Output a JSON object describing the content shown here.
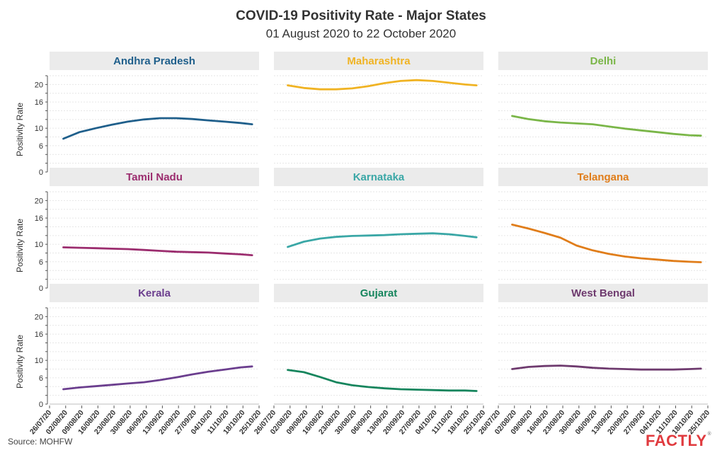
{
  "title": "COVID-19 Positivity Rate - Major States",
  "subtitle": "01 August 2020 to 22 October 2020",
  "source": "Source: MOHFW",
  "logo": "FACTLY",
  "chart_data": {
    "type": "line",
    "layout": "small-multiples 3x3",
    "ylabel": "Positivity Rate",
    "yticks": [
      0,
      6,
      10,
      16,
      20
    ],
    "ylim": [
      0,
      22
    ],
    "grid": true,
    "x_dates": [
      "01/08/20",
      "08/08/20",
      "15/08/20",
      "22/08/20",
      "29/08/20",
      "05/09/20",
      "12/09/20",
      "19/09/20",
      "26/09/20",
      "03/10/20",
      "10/10/20",
      "17/10/20",
      "22/10/20"
    ],
    "x_range": [
      "26/07/20",
      "25/10/20"
    ],
    "xtick_labels": [
      "26/07/20",
      "02/08/20",
      "09/08/20",
      "16/08/20",
      "23/08/20",
      "30/08/20",
      "06/09/20",
      "13/09/20",
      "20/09/20",
      "27/09/20",
      "04/10/20",
      "11/10/20",
      "18/10/20",
      "25/10/20"
    ],
    "series": [
      {
        "name": "Andhra Pradesh",
        "color": "#1f5f8b",
        "values": [
          7.6,
          9.1,
          10.0,
          10.8,
          11.5,
          12.0,
          12.3,
          12.3,
          12.1,
          11.8,
          11.5,
          11.2,
          10.9
        ]
      },
      {
        "name": "Maharashtra",
        "color": "#f0b323",
        "values": [
          19.8,
          19.2,
          18.9,
          18.9,
          19.1,
          19.6,
          20.3,
          20.8,
          21.0,
          20.8,
          20.4,
          20.0,
          19.8
        ]
      },
      {
        "name": "Delhi",
        "color": "#7ab648",
        "values": [
          12.8,
          12.1,
          11.6,
          11.3,
          11.1,
          10.9,
          10.4,
          9.9,
          9.5,
          9.1,
          8.7,
          8.4,
          8.3
        ]
      },
      {
        "name": "Tamil Nadu",
        "color": "#9b2c6e",
        "values": [
          9.3,
          9.2,
          9.1,
          9.0,
          8.9,
          8.7,
          8.5,
          8.3,
          8.2,
          8.1,
          7.9,
          7.7,
          7.5
        ]
      },
      {
        "name": "Karnataka",
        "color": "#3aa7a6",
        "values": [
          9.4,
          10.6,
          11.3,
          11.7,
          11.9,
          12.0,
          12.1,
          12.3,
          12.4,
          12.5,
          12.3,
          11.9,
          11.6
        ]
      },
      {
        "name": "Telangana",
        "color": "#e07d1a",
        "values": [
          14.5,
          13.6,
          12.6,
          11.5,
          9.7,
          8.6,
          7.8,
          7.2,
          6.8,
          6.5,
          6.2,
          6.0,
          5.9
        ]
      },
      {
        "name": "Kerala",
        "color": "#6b3e8e",
        "values": [
          3.4,
          3.8,
          4.1,
          4.4,
          4.7,
          5.0,
          5.5,
          6.1,
          6.8,
          7.4,
          7.9,
          8.4,
          8.6
        ]
      },
      {
        "name": "Gujarat",
        "color": "#16855d",
        "values": [
          7.8,
          7.3,
          6.2,
          5.0,
          4.3,
          3.9,
          3.6,
          3.4,
          3.3,
          3.2,
          3.1,
          3.1,
          3.0
        ]
      },
      {
        "name": "West Bengal",
        "color": "#6e3a6e",
        "values": [
          8.0,
          8.5,
          8.7,
          8.8,
          8.6,
          8.3,
          8.1,
          8.0,
          7.9,
          7.9,
          7.9,
          8.0,
          8.1
        ]
      }
    ]
  }
}
